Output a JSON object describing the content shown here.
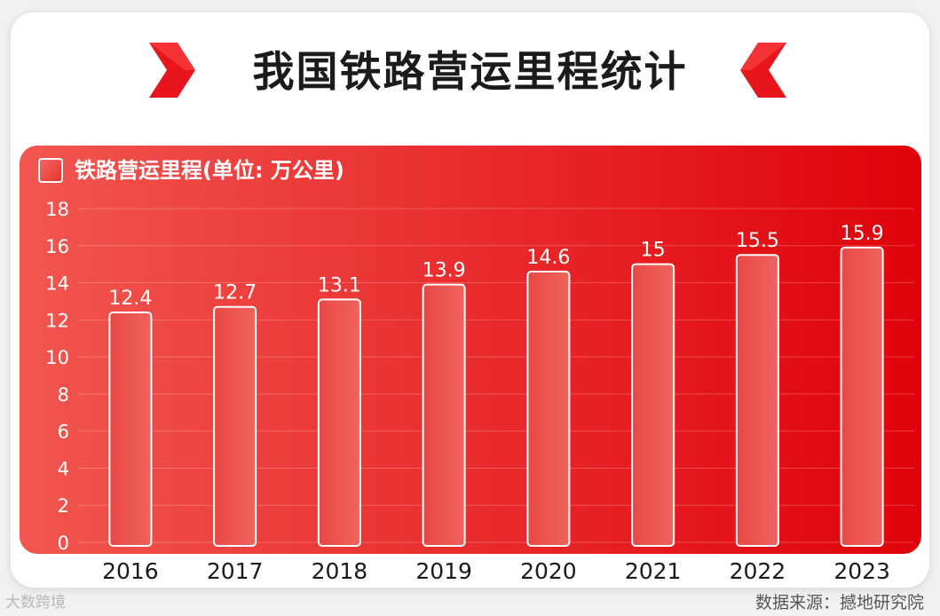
{
  "title": "我国铁路营运里程统计",
  "source": "数据来源：撼地研究院",
  "brand": "大数跨境",
  "colors": {
    "panel_left": "#f25650",
    "panel_right": "#e0020b",
    "accent": "#e8161c",
    "bar": "#ea4a46"
  },
  "chart_data": {
    "type": "bar",
    "legend": "铁路营运里程(单位: 万公里)",
    "categories": [
      "2016",
      "2017",
      "2018",
      "2019",
      "2020",
      "2021",
      "2022",
      "2023"
    ],
    "series": [
      {
        "name": "铁路营运里程(单位: 万公里)",
        "values": [
          12.4,
          12.7,
          13.1,
          13.9,
          14.6,
          15,
          15.5,
          15.9
        ]
      }
    ],
    "value_labels": [
      "12.4",
      "12.7",
      "13.1",
      "13.9",
      "14.6",
      "15",
      "15.5",
      "15.9"
    ],
    "ylim": [
      0,
      18
    ],
    "yticks": [
      "0",
      "2",
      "4",
      "6",
      "8",
      "10",
      "12",
      "14",
      "16",
      "18"
    ],
    "grid": true,
    "legend_position": "top-left"
  }
}
